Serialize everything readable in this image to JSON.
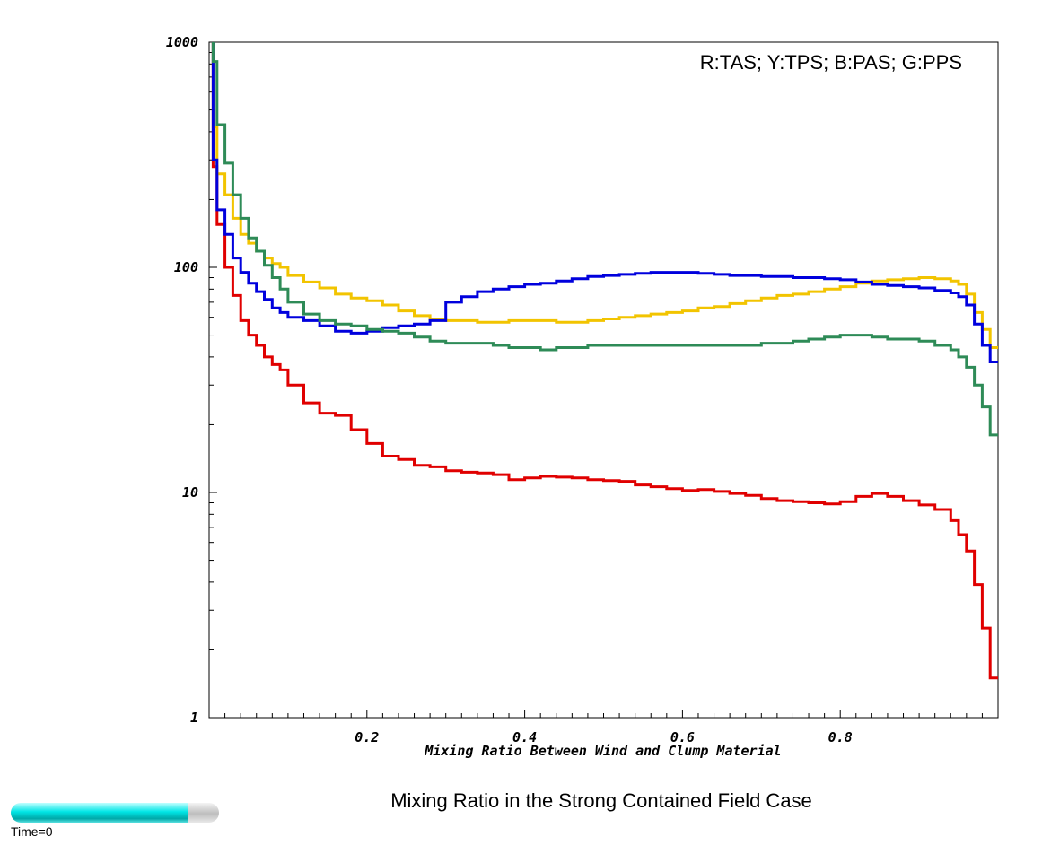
{
  "title": "Mixing Ratio in the Strong Contained Field Case",
  "time_label": "Time=0",
  "time_progress": 0.85,
  "chart_data": {
    "type": "line",
    "step": true,
    "xlabel": "Mixing Ratio Between Wind and Clump Material",
    "ylabel": "",
    "xlim": [
      0.0,
      1.0
    ],
    "ylim": [
      1,
      1000
    ],
    "yscale": "log",
    "x_ticks": [
      "0.2",
      "0.4",
      "0.6",
      "0.8"
    ],
    "y_ticks": [
      "1",
      "10",
      "100",
      "1000"
    ],
    "legend_text": "R:TAS; Y:TPS; B:PAS; G:PPS",
    "legend_position": "top-right",
    "grid": false,
    "x": [
      0.01,
      0.02,
      0.03,
      0.04,
      0.05,
      0.06,
      0.07,
      0.08,
      0.09,
      0.1,
      0.12,
      0.14,
      0.16,
      0.18,
      0.2,
      0.22,
      0.24,
      0.26,
      0.28,
      0.3,
      0.32,
      0.34,
      0.36,
      0.38,
      0.4,
      0.42,
      0.44,
      0.46,
      0.48,
      0.5,
      0.52,
      0.54,
      0.56,
      0.58,
      0.6,
      0.62,
      0.64,
      0.66,
      0.68,
      0.7,
      0.72,
      0.74,
      0.76,
      0.78,
      0.8,
      0.82,
      0.84,
      0.86,
      0.88,
      0.9,
      0.92,
      0.94,
      0.95,
      0.96,
      0.97,
      0.98,
      0.99,
      1.0
    ],
    "series": [
      {
        "color": "#e00000",
        "values": [
          280,
          155,
          100,
          75,
          58,
          50,
          45,
          40,
          37,
          35,
          30,
          25,
          22.5,
          22,
          19,
          16.5,
          14.5,
          14,
          13.2,
          13,
          12.5,
          12.3,
          12.2,
          12,
          11.4,
          11.6,
          11.8,
          11.7,
          11.6,
          11.4,
          11.3,
          11.2,
          10.8,
          10.6,
          10.4,
          10.2,
          10.3,
          10.1,
          9.9,
          9.7,
          9.4,
          9.2,
          9.1,
          9.0,
          8.9,
          9.1,
          9.6,
          9.9,
          9.6,
          9.2,
          8.8,
          8.4,
          7.5,
          6.5,
          5.5,
          3.9,
          2.5,
          1.5
        ]
      },
      {
        "color": "#f2c400",
        "values": [
          420,
          260,
          210,
          165,
          140,
          128,
          118,
          110,
          104,
          100,
          92,
          86,
          81,
          76,
          73,
          71,
          68,
          64,
          61,
          59,
          58,
          58,
          57,
          57,
          58,
          58,
          58,
          57,
          57,
          58,
          59,
          60,
          61,
          62,
          63,
          64,
          66,
          67,
          69,
          71,
          73,
          75,
          76,
          78,
          80,
          82,
          85,
          87,
          88,
          89,
          90,
          89,
          87,
          84,
          76,
          63,
          53,
          44
        ]
      },
      {
        "color": "#0000dd",
        "values": [
          300,
          180,
          140,
          110,
          95,
          85,
          78,
          72,
          66,
          63,
          60,
          58,
          55,
          52,
          51,
          52,
          54,
          55,
          56,
          58,
          70,
          74,
          78,
          80,
          82,
          84,
          85,
          87,
          89,
          91,
          92,
          93,
          94,
          95,
          95,
          95,
          94,
          93,
          92,
          92,
          91,
          91,
          90,
          90,
          89,
          88,
          86,
          84,
          83,
          82,
          81,
          79,
          77,
          74,
          68,
          56,
          45,
          38
        ]
      },
      {
        "color": "#2e8b57",
        "values": [
          820,
          430,
          290,
          210,
          165,
          135,
          118,
          102,
          90,
          80,
          70,
          62,
          58,
          56,
          55,
          53,
          52,
          51,
          49,
          47,
          46,
          46,
          46,
          45,
          44,
          44,
          43,
          44,
          44,
          45,
          45,
          45,
          45,
          45,
          45,
          45,
          45,
          45,
          45,
          45,
          46,
          46,
          47,
          48,
          49,
          50,
          50,
          49,
          48,
          48,
          47,
          45,
          43,
          40,
          36,
          30,
          24,
          18
        ]
      }
    ]
  }
}
